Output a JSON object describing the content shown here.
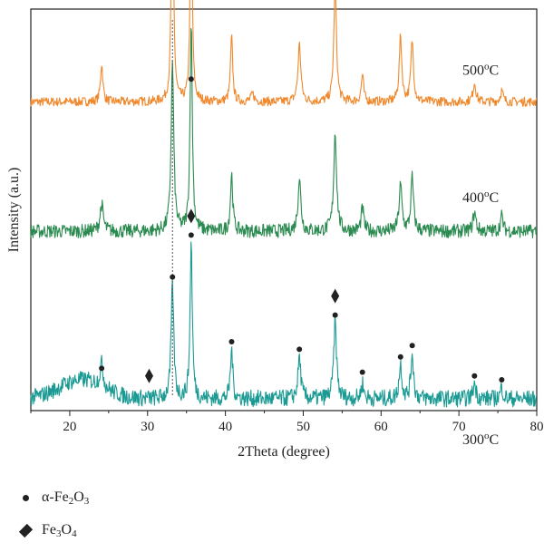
{
  "chart_data": {
    "type": "line",
    "xlabel": "2Theta (degree)",
    "ylabel": "Intensity (a.u.)",
    "xlim": [
      15,
      80
    ],
    "x_ticks": [
      20,
      30,
      40,
      50,
      60,
      70,
      80
    ],
    "reference_line_x": 33.2,
    "series": [
      {
        "name": "500oC",
        "color": "#f0892e",
        "baseline": 0.78,
        "noise": 0.012,
        "peaks": [
          [
            24.1,
            0.1,
            0.18
          ],
          [
            33.2,
            0.68,
            0.16
          ],
          [
            35.6,
            0.56,
            0.16
          ],
          [
            40.8,
            0.17,
            0.17
          ],
          [
            43.5,
            0.02,
            0.25
          ],
          [
            49.5,
            0.15,
            0.22
          ],
          [
            54.1,
            0.31,
            0.2
          ],
          [
            57.6,
            0.07,
            0.18
          ],
          [
            62.5,
            0.17,
            0.2
          ],
          [
            64.0,
            0.16,
            0.2
          ],
          [
            72.0,
            0.05,
            0.22
          ],
          [
            75.5,
            0.03,
            0.2
          ]
        ]
      },
      {
        "name": "400oC",
        "color": "#2a8a4f",
        "baseline": 0.44,
        "noise": 0.018,
        "peaks": [
          [
            24.1,
            0.07,
            0.25
          ],
          [
            33.2,
            0.44,
            0.2
          ],
          [
            35.6,
            0.55,
            0.17
          ],
          [
            40.8,
            0.15,
            0.18
          ],
          [
            49.5,
            0.14,
            0.22
          ],
          [
            54.1,
            0.26,
            0.22
          ],
          [
            57.6,
            0.06,
            0.2
          ],
          [
            62.5,
            0.12,
            0.22
          ],
          [
            64.0,
            0.14,
            0.2
          ],
          [
            72.0,
            0.05,
            0.22
          ],
          [
            75.5,
            0.04,
            0.2
          ]
        ]
      },
      {
        "name": "300oC",
        "color": "#1b9a94",
        "baseline": 0.0,
        "noise": 0.022,
        "hump": [
          21.5,
          0.05,
          4.0
        ],
        "peaks": [
          [
            24.1,
            0.06,
            0.25
          ],
          [
            33.2,
            0.3,
            0.2
          ],
          [
            35.6,
            0.41,
            0.17
          ],
          [
            40.8,
            0.13,
            0.18
          ],
          [
            49.5,
            0.11,
            0.22
          ],
          [
            54.1,
            0.2,
            0.22
          ],
          [
            57.6,
            0.04,
            0.2
          ],
          [
            62.5,
            0.09,
            0.22
          ],
          [
            64.0,
            0.12,
            0.2
          ],
          [
            72.0,
            0.04,
            0.22
          ],
          [
            75.5,
            0.03,
            0.2
          ]
        ]
      }
    ],
    "markers": [
      {
        "x": 35.6,
        "y": 0.84,
        "symbol": "dot"
      },
      {
        "x": 24.1,
        "y": 0.08,
        "symbol": "dot"
      },
      {
        "x": 33.2,
        "y": 0.32,
        "symbol": "dot"
      },
      {
        "x": 35.6,
        "y": 0.43,
        "symbol": "dot"
      },
      {
        "x": 40.8,
        "y": 0.15,
        "symbol": "dot"
      },
      {
        "x": 49.5,
        "y": 0.13,
        "symbol": "dot"
      },
      {
        "x": 54.1,
        "y": 0.22,
        "symbol": "dot"
      },
      {
        "x": 57.6,
        "y": 0.07,
        "symbol": "dot"
      },
      {
        "x": 62.5,
        "y": 0.11,
        "symbol": "dot"
      },
      {
        "x": 64.0,
        "y": 0.14,
        "symbol": "dot"
      },
      {
        "x": 72.0,
        "y": 0.06,
        "symbol": "dot"
      },
      {
        "x": 75.5,
        "y": 0.05,
        "symbol": "dot"
      },
      {
        "x": 35.6,
        "y": 0.48,
        "symbol": "diamond"
      },
      {
        "x": 30.2,
        "y": 0.06,
        "symbol": "diamond"
      },
      {
        "x": 54.1,
        "y": 0.27,
        "symbol": "diamond"
      }
    ],
    "legend": [
      {
        "symbol": "dot",
        "prefix": "α-Fe",
        "sub1": "2",
        "mid": "O",
        "sub2": "3"
      },
      {
        "symbol": "diamond",
        "prefix": "Fe",
        "sub1": "3",
        "mid": "O",
        "sub2": "4"
      }
    ],
    "legend_placement": "bottom-left"
  }
}
